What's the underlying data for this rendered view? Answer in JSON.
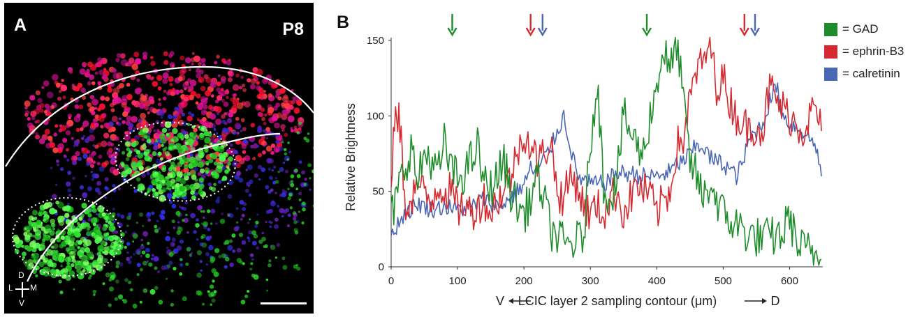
{
  "panel_a": {
    "label": "A",
    "age_label": "P8",
    "compass": {
      "dorsal": "D",
      "lateral": "L",
      "medial": "M",
      "ventral": "V"
    }
  },
  "panel_b": {
    "label": "B"
  },
  "chart_data": {
    "type": "line",
    "title": "",
    "xlabel": "V ⟵ LCIC layer 2 sampling contour (μm) ⟶ D",
    "xlabel_parts": {
      "left": "V",
      "main": "LCIC layer 2 sampling contour (μm)",
      "right": "D"
    },
    "ylabel": "Relative Brightness",
    "xlim": [
      0,
      650
    ],
    "ylim": [
      0,
      150
    ],
    "xticks": [
      0,
      100,
      200,
      300,
      400,
      500,
      600
    ],
    "yticks": [
      0,
      50,
      100,
      150
    ],
    "legend": [
      {
        "label": "= GAD",
        "color": "#1e8c2a"
      },
      {
        "label": "= ephrin-B3",
        "color": "#d42a30"
      },
      {
        "label": "= calretinin",
        "color": "#4a67b5"
      }
    ],
    "arrows": [
      {
        "x": 92,
        "series": "GAD",
        "color": "#1e8c2a"
      },
      {
        "x": 210,
        "series": "ephrin-B3",
        "color": "#d42a30"
      },
      {
        "x": 228,
        "series": "calretinin",
        "color": "#4a67b5"
      },
      {
        "x": 385,
        "series": "GAD",
        "color": "#1e8c2a"
      },
      {
        "x": 532,
        "series": "ephrin-B3",
        "color": "#d42a30"
      },
      {
        "x": 548,
        "series": "calretinin",
        "color": "#4a67b5"
      }
    ],
    "series": [
      {
        "name": "GAD",
        "color": "#1e8c2a",
        "x": [
          0,
          10,
          20,
          30,
          40,
          50,
          60,
          70,
          80,
          90,
          100,
          110,
          120,
          130,
          140,
          150,
          160,
          170,
          180,
          190,
          200,
          210,
          220,
          230,
          240,
          250,
          260,
          270,
          280,
          290,
          300,
          310,
          320,
          330,
          340,
          350,
          360,
          370,
          380,
          390,
          400,
          410,
          420,
          430,
          440,
          450,
          460,
          470,
          480,
          490,
          500,
          510,
          520,
          530,
          540,
          550,
          560,
          570,
          580,
          590,
          600,
          610,
          620,
          630,
          640,
          648
        ],
        "y": [
          32,
          50,
          65,
          80,
          55,
          75,
          72,
          60,
          82,
          65,
          58,
          62,
          70,
          80,
          55,
          52,
          60,
          70,
          50,
          40,
          35,
          45,
          60,
          45,
          25,
          20,
          15,
          15,
          17,
          20,
          80,
          125,
          55,
          45,
          60,
          100,
          90,
          80,
          75,
          100,
          120,
          145,
          128,
          150,
          110,
          70,
          60,
          45,
          55,
          45,
          35,
          30,
          28,
          25,
          20,
          20,
          18,
          20,
          20,
          22,
          35,
          15,
          12,
          10,
          8,
          5
        ],
        "noise": 14
      },
      {
        "name": "ephrin-B3",
        "color": "#d42a30",
        "x": [
          0,
          5,
          10,
          15,
          20,
          30,
          40,
          50,
          60,
          70,
          80,
          90,
          100,
          110,
          120,
          130,
          140,
          150,
          160,
          170,
          180,
          190,
          200,
          210,
          220,
          230,
          240,
          250,
          260,
          270,
          280,
          290,
          300,
          310,
          320,
          330,
          340,
          350,
          360,
          370,
          380,
          390,
          400,
          410,
          420,
          430,
          440,
          450,
          460,
          470,
          480,
          490,
          500,
          510,
          520,
          530,
          540,
          550,
          560,
          570,
          580,
          590,
          600,
          610,
          620,
          630,
          640,
          648
        ],
        "y": [
          50,
          95,
          100,
          88,
          40,
          45,
          55,
          48,
          42,
          55,
          50,
          50,
          38,
          42,
          35,
          40,
          45,
          35,
          45,
          50,
          60,
          75,
          90,
          80,
          70,
          75,
          85,
          50,
          45,
          60,
          55,
          40,
          35,
          40,
          35,
          45,
          50,
          35,
          45,
          55,
          50,
          48,
          35,
          45,
          50,
          80,
          85,
          110,
          130,
          135,
          150,
          120,
          125,
          110,
          100,
          95,
          90,
          95,
          90,
          120,
          110,
          105,
          100,
          95,
          90,
          100,
          105,
          90
        ],
        "noise": 13
      },
      {
        "name": "calretinin",
        "color": "#4a67b5",
        "x": [
          0,
          20,
          40,
          60,
          80,
          100,
          120,
          140,
          160,
          180,
          200,
          210,
          220,
          230,
          240,
          250,
          260,
          270,
          280,
          300,
          320,
          340,
          360,
          380,
          400,
          420,
          430,
          440,
          450,
          460,
          470,
          480,
          490,
          500,
          510,
          520,
          530,
          540,
          550,
          560,
          570,
          580,
          590,
          600,
          620,
          640,
          648
        ],
        "y": [
          22,
          35,
          42,
          38,
          40,
          38,
          40,
          45,
          40,
          45,
          55,
          65,
          62,
          72,
          78,
          90,
          100,
          80,
          60,
          55,
          55,
          62,
          62,
          60,
          60,
          63,
          68,
          70,
          75,
          80,
          80,
          72,
          70,
          68,
          65,
          60,
          70,
          85,
          90,
          95,
          110,
          120,
          100,
          95,
          90,
          80,
          60
        ],
        "noise": 6
      }
    ]
  }
}
